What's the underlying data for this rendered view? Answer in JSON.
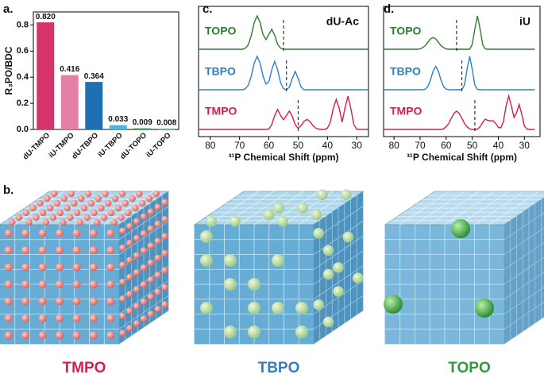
{
  "chart_data": [
    {
      "panel": "a.",
      "type": "bar",
      "ylabel": "R₃PO/BDC",
      "categories": [
        "dU-TMPO",
        "iU-TMPO",
        "dU-TBPO",
        "iU-TBPO",
        "dU-TOPO",
        "iU-TOPO"
      ],
      "values": [
        0.82,
        0.416,
        0.364,
        0.033,
        0.009,
        0.008
      ],
      "value_labels": [
        "0.820",
        "0.416",
        "0.364",
        "0.033",
        "0.009",
        "0.008"
      ],
      "colors": [
        "#d6336c",
        "#e57fa8",
        "#1f6fb5",
        "#4cb8e0",
        "#3aa655",
        "#8fd19e"
      ],
      "ylim": [
        0,
        0.9
      ],
      "yticks": [
        {
          "value": 0,
          "label": "0.0"
        },
        {
          "value": 0.2,
          "label": "0.2"
        },
        {
          "value": 0.4,
          "label": "0.4"
        },
        {
          "value": 0.6,
          "label": "0.6"
        },
        {
          "value": 0.8,
          "label": "0.8"
        }
      ]
    },
    {
      "panel": "c.",
      "type": "line",
      "title": "dU-Ac",
      "xlabel": "³¹P Chemical Shift (ppm)",
      "xlim": [
        84,
        26
      ],
      "xticks": [
        80,
        70,
        60,
        50,
        40,
        30
      ],
      "x": [
        84,
        83,
        82,
        81,
        80,
        79,
        78,
        77,
        76,
        75,
        74,
        73,
        72,
        71,
        70,
        69,
        68,
        67,
        66,
        65,
        64,
        63,
        62,
        61,
        60,
        59,
        58,
        57,
        56,
        55,
        54,
        53,
        52,
        51,
        50,
        49,
        48,
        47,
        46,
        45,
        44,
        43,
        42,
        41,
        40,
        39,
        38,
        37,
        36,
        35,
        34,
        33,
        32,
        31,
        30,
        29,
        28,
        27,
        26
      ],
      "series": [
        {
          "name": "TOPO",
          "color": "#2e7d32",
          "ref_x": 55,
          "values": [
            0,
            0,
            0,
            0,
            0,
            0,
            0,
            0,
            0,
            0,
            0,
            0,
            0,
            0,
            0,
            0,
            0.03,
            0.14,
            0.41,
            0.8,
            1,
            0.8,
            0.44,
            0.29,
            0.45,
            0.6,
            0.42,
            0.15,
            0.03,
            0,
            0,
            0,
            0,
            0,
            0,
            0,
            0,
            0,
            0,
            0,
            0,
            0,
            0,
            0,
            0,
            0,
            0,
            0,
            0,
            0,
            0,
            0,
            0,
            0,
            0,
            0,
            0,
            0,
            0
          ]
        },
        {
          "name": "TBPO",
          "color": "#2f7fc1",
          "ref_x": 54,
          "values": [
            0,
            0,
            0,
            0,
            0,
            0,
            0,
            0,
            0,
            0,
            0,
            0,
            0,
            0,
            0,
            0,
            0.03,
            0.14,
            0.41,
            0.8,
            1,
            0.8,
            0.41,
            0.17,
            0.24,
            0.6,
            0.85,
            0.6,
            0.21,
            0.03,
            0,
            0.08,
            0.34,
            0.55,
            0.34,
            0.08,
            0,
            0,
            0,
            0,
            0,
            0,
            0,
            0,
            0,
            0,
            0,
            0,
            0,
            0,
            0,
            0,
            0,
            0,
            0,
            0,
            0,
            0,
            0
          ]
        },
        {
          "name": "TMPO",
          "color": "#d81b50",
          "ref_x": 50,
          "values": [
            0,
            0,
            0,
            0,
            0,
            0,
            0,
            0,
            0,
            0,
            0,
            0,
            0,
            0,
            0,
            0,
            0,
            0,
            0,
            0,
            0,
            0,
            0,
            0,
            0.02,
            0.15,
            0.42,
            0.6,
            0.42,
            0.29,
            0.42,
            0.55,
            0.39,
            0.14,
            0.03,
            0.12,
            0.24,
            0.3,
            0.24,
            0.12,
            0.04,
            0.01,
            0,
            0,
            0.04,
            0.22,
            0.64,
            0.9,
            0.64,
            0.22,
            0.65,
            1,
            0.61,
            0.14,
            0.01,
            0,
            0,
            0,
            0
          ]
        }
      ]
    },
    {
      "panel": "d.",
      "type": "line",
      "title": "iU",
      "xlabel": "³¹P Chemical Shift (ppm)",
      "xlim": [
        84,
        24
      ],
      "xticks": [
        80,
        70,
        60,
        50,
        40,
        30
      ],
      "x": [
        84,
        83,
        82,
        81,
        80,
        79,
        78,
        77,
        76,
        75,
        74,
        73,
        72,
        71,
        70,
        69,
        68,
        67,
        66,
        65,
        64,
        63,
        62,
        61,
        60,
        59,
        58,
        57,
        56,
        55,
        54,
        53,
        52,
        51,
        50,
        49,
        48,
        47,
        46,
        45,
        44,
        43,
        42,
        41,
        40,
        39,
        38,
        37,
        36,
        35,
        34,
        33,
        32,
        31,
        30,
        29,
        28,
        27,
        26
      ],
      "series": [
        {
          "name": "TOPO",
          "color": "#2e7d32",
          "ref_x": 56,
          "values": [
            0,
            0,
            0,
            0,
            0,
            0,
            0,
            0,
            0,
            0,
            0,
            0,
            0,
            0,
            0.01,
            0.05,
            0.11,
            0.21,
            0.31,
            0.35,
            0.31,
            0.21,
            0.11,
            0.05,
            0.01,
            0,
            0,
            0,
            0,
            0,
            0,
            0,
            0,
            0,
            0.14,
            0.61,
            1,
            0.61,
            0.14,
            0.01,
            0,
            0,
            0,
            0,
            0,
            0,
            0,
            0,
            0,
            0,
            0,
            0,
            0,
            0,
            0,
            0,
            0,
            0,
            0
          ]
        },
        {
          "name": "TBPO",
          "color": "#2f7fc1",
          "ref_x": 54,
          "values": [
            0,
            0,
            0,
            0,
            0,
            0,
            0,
            0,
            0,
            0,
            0,
            0,
            0,
            0,
            0,
            0,
            0.02,
            0.1,
            0.29,
            0.56,
            0.7,
            0.56,
            0.29,
            0.1,
            0.02,
            0,
            0,
            0,
            0,
            0,
            0,
            0.14,
            0.61,
            1,
            0.61,
            0.14,
            0.01,
            0,
            0,
            0,
            0,
            0,
            0,
            0,
            0,
            0,
            0,
            0,
            0,
            0,
            0,
            0,
            0,
            0,
            0,
            0,
            0,
            0,
            0
          ]
        },
        {
          "name": "TMPO",
          "color": "#d81b50",
          "ref_x": 49,
          "values": [
            0,
            0,
            0,
            0,
            0,
            0,
            0,
            0,
            0,
            0,
            0,
            0,
            0,
            0,
            0,
            0,
            0,
            0,
            0,
            0,
            0,
            0,
            0,
            0.02,
            0.08,
            0.18,
            0.34,
            0.48,
            0.55,
            0.48,
            0.34,
            0.18,
            0.08,
            0.02,
            0,
            0,
            0.01,
            0.08,
            0.21,
            0.31,
            0.27,
            0.26,
            0.26,
            0.18,
            0.06,
            0.05,
            0.25,
            0.71,
            1,
            0.71,
            0.36,
            0.5,
            0.75,
            0.46,
            0.1,
            0.01,
            0,
            0,
            0
          ]
        }
      ]
    }
  ],
  "cubes": {
    "panel": "b.",
    "items": [
      {
        "label": "TMPO",
        "color": "#d81b50"
      },
      {
        "label": "TBPO",
        "color": "#2f7fc1"
      },
      {
        "label": "TOPO",
        "color": "#2e9a3e"
      }
    ]
  }
}
